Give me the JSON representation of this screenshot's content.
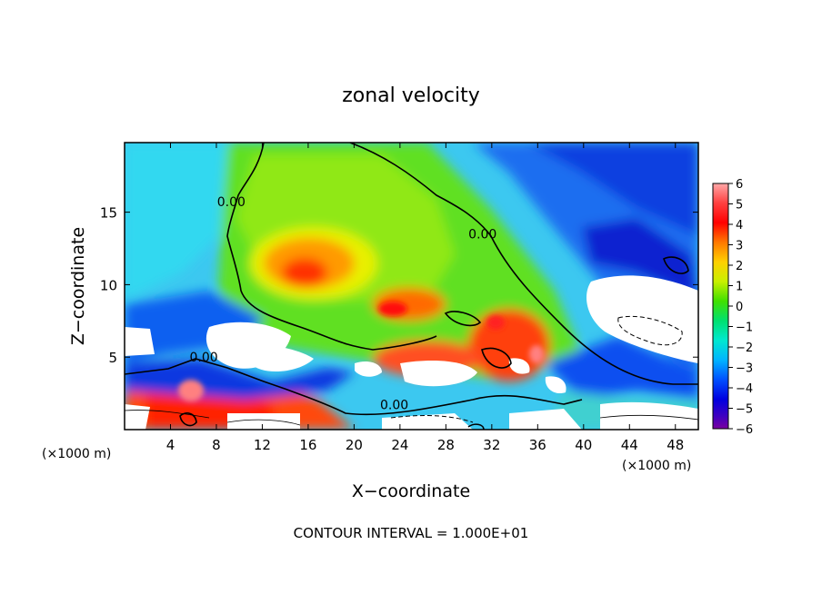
{
  "chart_data": {
    "type": "heatmap",
    "title": "zonal velocity",
    "xlabel": "X−coordinate",
    "ylabel": "Z−coordinate",
    "x_unit_left": "(×1000 m)",
    "x_unit_right": "(×1000 m)",
    "footer": "CONTOUR INTERVAL = 1.000E+01",
    "xlim": [
      0,
      50
    ],
    "ylim": [
      0,
      19.8
    ],
    "x_ticks": [
      4,
      8,
      12,
      16,
      20,
      24,
      28,
      32,
      36,
      40,
      44,
      48
    ],
    "y_ticks": [
      5,
      10,
      15
    ],
    "colorbar_ticks": [
      6,
      5,
      4,
      3,
      2,
      1,
      0,
      -1,
      -2,
      -3,
      -4,
      -5,
      -6
    ],
    "colorbar_range": [
      -6,
      6
    ],
    "contour_labels": [
      {
        "text": "0.00",
        "x": 9.3,
        "z": 15.4
      },
      {
        "text": "0.00",
        "x": 31.2,
        "z": 13.2
      },
      {
        "text": "0.00",
        "x": 6.9,
        "z": 4.7
      },
      {
        "text": "0.00",
        "x": 23.5,
        "z": 1.4
      }
    ],
    "colors": [
      "#7b00a0",
      "#3a00c8",
      "#0000f0",
      "#0048ff",
      "#0096ff",
      "#00d2ff",
      "#00f0c8",
      "#00e878",
      "#20e020",
      "#70e800",
      "#b8f000",
      "#f0f000",
      "#ffc800",
      "#ff8c00",
      "#ff4600",
      "#ff0000",
      "#ff6060",
      "#ffa8a8"
    ]
  }
}
